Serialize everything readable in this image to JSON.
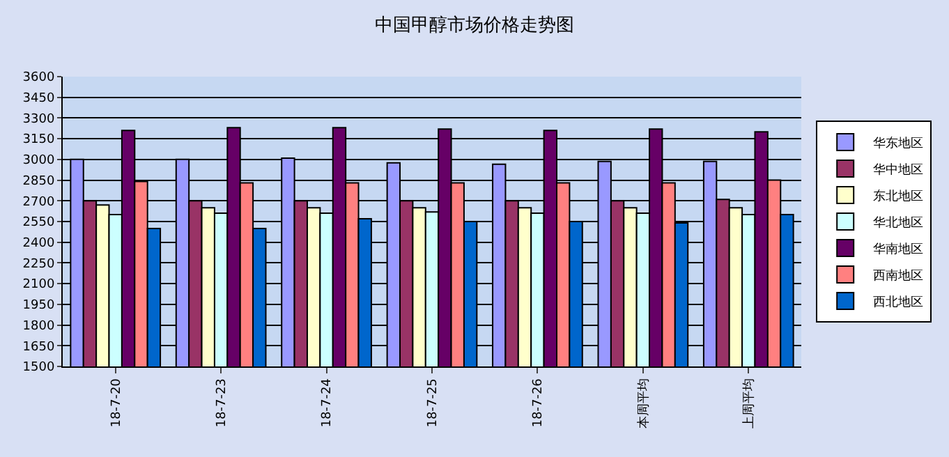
{
  "chart_data": {
    "type": "bar",
    "title": "中国甲醇市场价格走势图",
    "categories": [
      "18-7-20",
      "18-7-23",
      "18-7-24",
      "18-7-25",
      "18-7-26",
      "本周平均",
      "上周平均"
    ],
    "series": [
      {
        "name": "华东地区",
        "color": "#9999ff",
        "values": [
          3000,
          3000,
          3010,
          2975,
          2965,
          2985,
          2985
        ]
      },
      {
        "name": "华中地区",
        "color": "#993366",
        "values": [
          2700,
          2700,
          2700,
          2700,
          2700,
          2700,
          2710
        ]
      },
      {
        "name": "东北地区",
        "color": "#ffffcc",
        "values": [
          2670,
          2650,
          2650,
          2650,
          2650,
          2650,
          2650
        ]
      },
      {
        "name": "华北地区",
        "color": "#ccffff",
        "values": [
          2600,
          2610,
          2610,
          2620,
          2610,
          2610,
          2600
        ]
      },
      {
        "name": "华南地区",
        "color": "#660066",
        "values": [
          3210,
          3230,
          3230,
          3220,
          3210,
          3220,
          3200
        ]
      },
      {
        "name": "西南地区",
        "color": "#ff8080",
        "values": [
          2840,
          2830,
          2830,
          2830,
          2830,
          2830,
          2850
        ]
      },
      {
        "name": "西北地区",
        "color": "#0066cc",
        "values": [
          2500,
          2500,
          2570,
          2550,
          2550,
          2540,
          2600
        ]
      }
    ],
    "ylim": [
      1500,
      3600
    ],
    "yticks": [
      1500,
      1650,
      1800,
      1950,
      2100,
      2250,
      2400,
      2550,
      2700,
      2850,
      3000,
      3150,
      3300,
      3450,
      3600
    ],
    "grid": "y",
    "legend": "right"
  }
}
